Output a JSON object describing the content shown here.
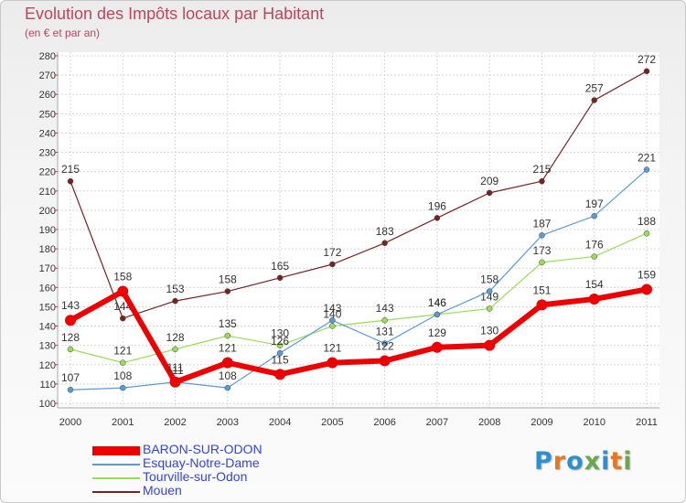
{
  "title": "Evolution des Impôts locaux par Habitant",
  "subtitle": "(en € et par an)",
  "logo": {
    "text": "Proxiti",
    "letter_colors": [
      "#2b8fd6",
      "#e87722",
      "#2b8fd6",
      "#6aa84f",
      "#2b8fd6",
      "#e87722",
      "#6aa84f"
    ]
  },
  "chart_data": {
    "type": "line",
    "x": [
      "2000",
      "2001",
      "2002",
      "2003",
      "2004",
      "2005",
      "2006",
      "2007",
      "2008",
      "2009",
      "2010",
      "2011"
    ],
    "ylim": [
      100,
      280
    ],
    "yticks": [
      "100",
      "110",
      "120",
      "130",
      "140",
      "150",
      "160",
      "170",
      "180",
      "190",
      "200",
      "210",
      "220",
      "230",
      "240",
      "250",
      "260",
      "270",
      "280"
    ],
    "grid": true,
    "legend": "bottom-left",
    "series": [
      {
        "name": "Mouen",
        "color": "#7b2020",
        "values": [
          215,
          144,
          153,
          158,
          165,
          172,
          183,
          196,
          209,
          215,
          257,
          272
        ],
        "labels": [
          "215",
          "144",
          "153",
          "158",
          "165",
          "172",
          "183",
          "196",
          "209",
          "215",
          "257",
          "272"
        ]
      },
      {
        "name": "Tourville-sur-Odon",
        "color": "#99dd55",
        "values": [
          128,
          121,
          128,
          135,
          130,
          140,
          143,
          146,
          149,
          173,
          176,
          188
        ],
        "labels": [
          "128",
          "121",
          "128",
          "135",
          "130",
          "140",
          "143",
          "146",
          "149",
          "173",
          "176",
          "188"
        ]
      },
      {
        "name": "Esquay-Notre-Dame",
        "color": "#5b9bd5",
        "values": [
          107,
          108,
          111,
          108,
          126,
          143,
          131,
          146,
          158,
          187,
          197,
          221
        ],
        "labels": [
          "107",
          "108",
          "111",
          "108",
          "126",
          "143",
          "131",
          "146",
          "158",
          "187",
          "197",
          "221"
        ]
      },
      {
        "name": "BARON-SUR-ODON",
        "color": "#ee0000",
        "values": [
          143,
          158,
          111,
          121,
          115,
          121,
          122,
          129,
          130,
          151,
          154,
          159
        ],
        "labels": [
          "143",
          "158",
          "111",
          "121",
          "115",
          "121",
          "122",
          "129",
          "130",
          "151",
          "154",
          "159"
        ]
      }
    ]
  },
  "legend_order": [
    "BARON-SUR-ODON",
    "Esquay-Notre-Dame",
    "Tourville-sur-Odon",
    "Mouen"
  ]
}
